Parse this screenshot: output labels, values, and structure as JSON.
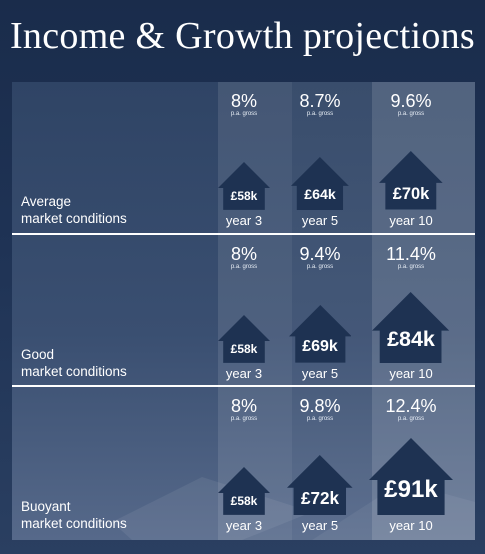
{
  "title": "Income & Growth projections",
  "colors": {
    "house": "#1e3252",
    "background": "#1c2f4f"
  },
  "chart_data": {
    "type": "table",
    "columns": [
      "year 3",
      "year 5",
      "year 10"
    ],
    "rows": [
      {
        "label_line1": "Average",
        "label_line2": "market conditions",
        "cells": [
          {
            "rate": "8%",
            "rate_sub": "p.a. gross",
            "value": "£58k",
            "year": "year 3"
          },
          {
            "rate": "8.7%",
            "rate_sub": "p.a. gross",
            "value": "£64k",
            "year": "year 5"
          },
          {
            "rate": "9.6%",
            "rate_sub": "p.a. gross",
            "value": "£70k",
            "year": "year 10"
          }
        ]
      },
      {
        "label_line1": "Good",
        "label_line2": "market conditions",
        "cells": [
          {
            "rate": "8%",
            "rate_sub": "p.a. gross",
            "value": "£58k",
            "year": "year 3"
          },
          {
            "rate": "9.4%",
            "rate_sub": "p.a. gross",
            "value": "£69k",
            "year": "year 5"
          },
          {
            "rate": "11.4%",
            "rate_sub": "p.a. gross",
            "value": "£84k",
            "year": "year 10"
          }
        ]
      },
      {
        "label_line1": "Buoyant",
        "label_line2": "market conditions",
        "cells": [
          {
            "rate": "8%",
            "rate_sub": "p.a. gross",
            "value": "£58k",
            "year": "year 3"
          },
          {
            "rate": "9.8%",
            "rate_sub": "p.a. gross",
            "value": "£72k",
            "year": "year 5"
          },
          {
            "rate": "12.4%",
            "rate_sub": "p.a. gross",
            "value": "£91k",
            "year": "year 10"
          }
        ]
      }
    ]
  }
}
